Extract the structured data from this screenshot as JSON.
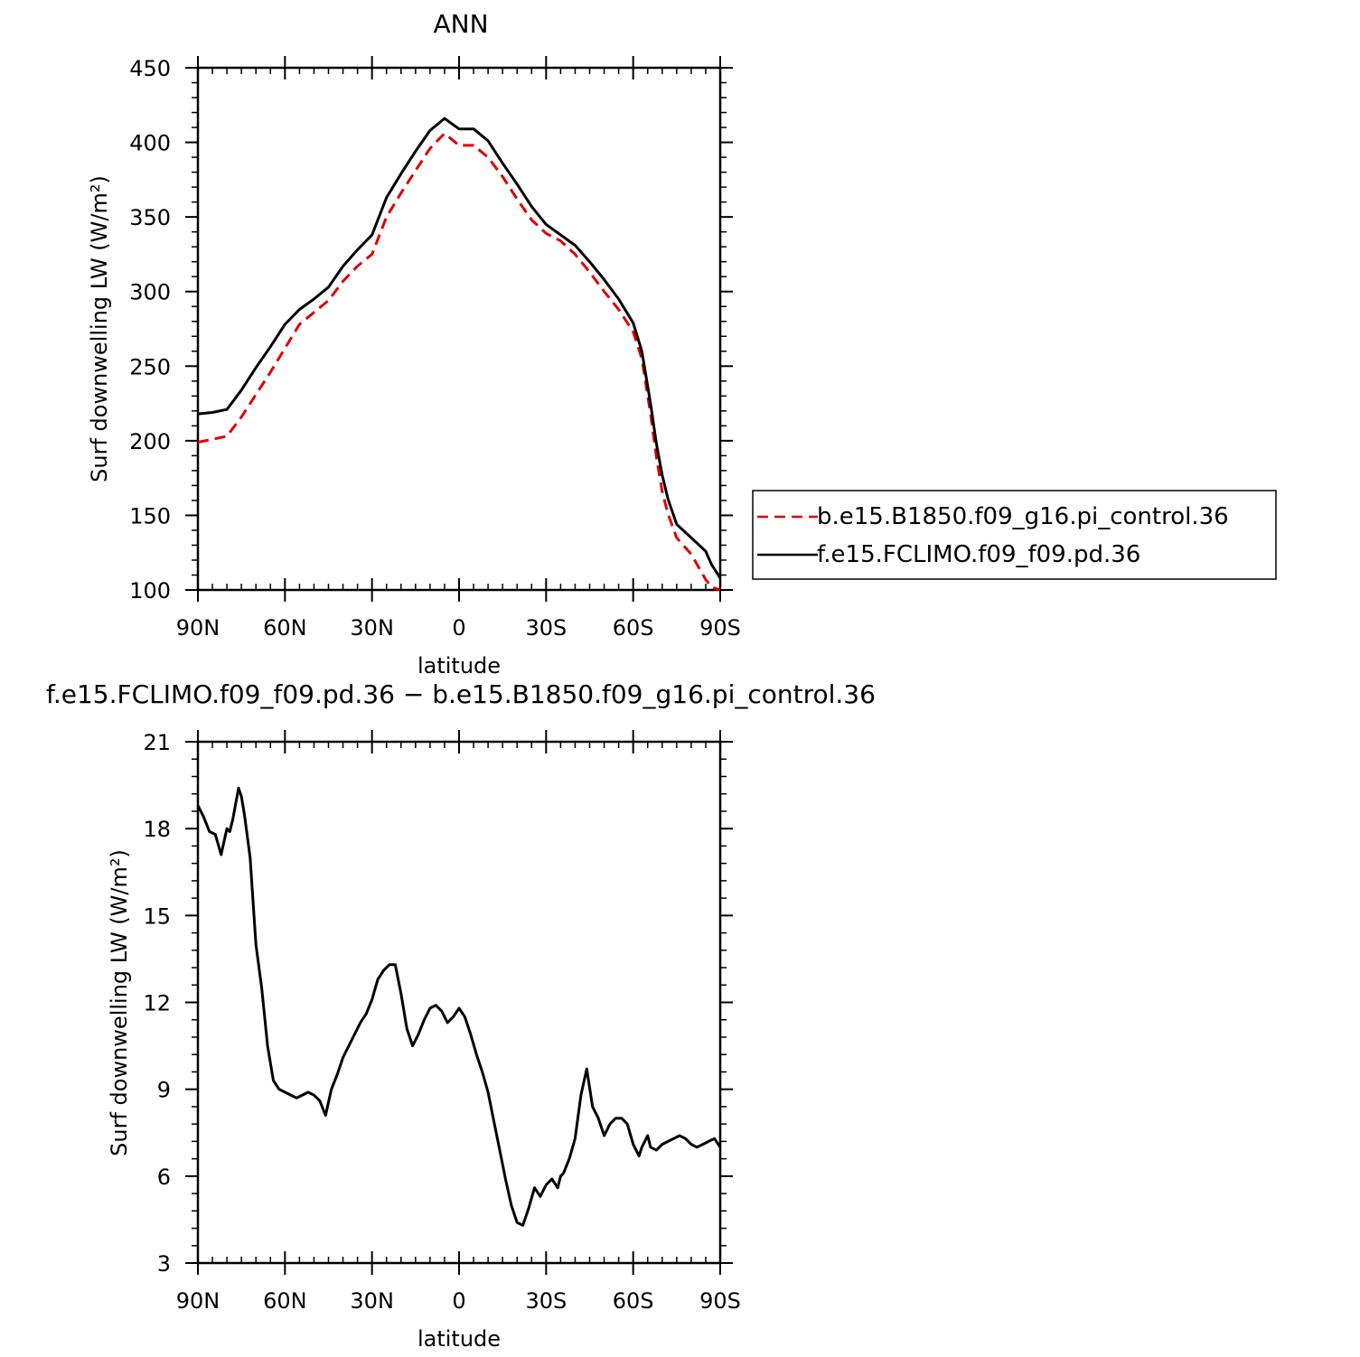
{
  "chart_data": [
    {
      "type": "line",
      "title": "ANN",
      "xlabel": "latitude",
      "ylabel": "Surf downwelling LW (W/m²)",
      "xlim": [
        90,
        -90
      ],
      "ylim": [
        100,
        450
      ],
      "x_ticks": [
        {
          "value": 90,
          "label": "90N"
        },
        {
          "value": 60,
          "label": "60N"
        },
        {
          "value": 30,
          "label": "30N"
        },
        {
          "value": 0,
          "label": "0"
        },
        {
          "value": -30,
          "label": "30S"
        },
        {
          "value": -60,
          "label": "60S"
        },
        {
          "value": -90,
          "label": "90S"
        }
      ],
      "y_ticks": [
        100,
        150,
        200,
        250,
        300,
        350,
        400,
        450
      ],
      "legend": "right",
      "series": [
        {
          "name": "b.e15.B1850.f09_g16.pi_control.36",
          "color": "#e00000",
          "dash": true,
          "x": [
            90,
            85,
            80,
            75,
            70,
            65,
            60,
            55,
            50,
            45,
            40,
            35,
            30,
            25,
            20,
            15,
            10,
            5,
            0,
            -5,
            -10,
            -15,
            -20,
            -25,
            -30,
            -35,
            -40,
            -45,
            -50,
            -55,
            -60,
            -63,
            -66,
            -68,
            -70,
            -72,
            -75,
            -80,
            -85,
            -87,
            -90
          ],
          "values": [
            199,
            201,
            203,
            216,
            231,
            246,
            262,
            278,
            286,
            294,
            307,
            317,
            325,
            350,
            366,
            381,
            396,
            406,
            398,
            398,
            390,
            377,
            362,
            348,
            339,
            334,
            325,
            313,
            300,
            288,
            273,
            255,
            218,
            189,
            166,
            151,
            135,
            124,
            107,
            102,
            100
          ]
        },
        {
          "name": "f.e15.FCLIMO.f09_f09.pd.36",
          "color": "#000000",
          "dash": false,
          "x": [
            90,
            85,
            80,
            75,
            70,
            65,
            60,
            55,
            50,
            45,
            40,
            35,
            30,
            25,
            20,
            15,
            10,
            5,
            0,
            -5,
            -10,
            -15,
            -20,
            -25,
            -30,
            -35,
            -40,
            -45,
            -50,
            -55,
            -60,
            -63,
            -66,
            -68,
            -70,
            -72,
            -75,
            -80,
            -85,
            -87,
            -90
          ],
          "values": [
            218,
            219,
            221,
            234,
            249,
            263,
            278,
            288,
            295,
            303,
            317,
            328,
            338,
            363,
            379,
            394,
            408,
            416,
            409,
            409,
            401,
            386,
            372,
            357,
            345,
            338,
            331,
            320,
            308,
            295,
            279,
            260,
            225,
            198,
            177,
            161,
            144,
            135,
            126,
            117,
            108
          ]
        }
      ]
    },
    {
      "type": "line",
      "title": "f.e15.FCLIMO.f09_f09.pd.36 − b.e15.B1850.f09_g16.pi_control.36",
      "xlabel": "latitude",
      "ylabel": "Surf downwelling LW (W/m²)",
      "xlim": [
        90,
        -90
      ],
      "ylim": [
        3,
        21
      ],
      "x_ticks": [
        {
          "value": 90,
          "label": "90N"
        },
        {
          "value": 60,
          "label": "60N"
        },
        {
          "value": 30,
          "label": "30N"
        },
        {
          "value": 0,
          "label": "0"
        },
        {
          "value": -30,
          "label": "30S"
        },
        {
          "value": -60,
          "label": "60S"
        },
        {
          "value": -90,
          "label": "90S"
        }
      ],
      "y_ticks": [
        3,
        6,
        9,
        12,
        15,
        18,
        21
      ],
      "series": [
        {
          "color": "#000000",
          "dash": false,
          "x": [
            90,
            88,
            86,
            84,
            82,
            80,
            79,
            78,
            76,
            75,
            74,
            72,
            70,
            68,
            66,
            64,
            62,
            60,
            58,
            56,
            54,
            52,
            50,
            48,
            46,
            44,
            42,
            40,
            38,
            36,
            34,
            32,
            30,
            28,
            26,
            24,
            22,
            20,
            18,
            16,
            14,
            12,
            10,
            8,
            6,
            4,
            2,
            0,
            -2,
            -4,
            -6,
            -8,
            -10,
            -12,
            -14,
            -16,
            -18,
            -20,
            -22,
            -24,
            -26,
            -28,
            -30,
            -32,
            -34,
            -35,
            -36,
            -38,
            -40,
            -42,
            -44,
            -46,
            -48,
            -50,
            -52,
            -54,
            -56,
            -58,
            -60,
            -62,
            -63,
            -64,
            -65,
            -66,
            -68,
            -70,
            -72,
            -74,
            -76,
            -78,
            -80,
            -82,
            -84,
            -86,
            -88,
            -90
          ],
          "values": [
            18.8,
            18.4,
            17.9,
            17.8,
            17.1,
            18.0,
            17.9,
            18.3,
            19.4,
            19.1,
            18.5,
            17.0,
            14.0,
            12.5,
            10.5,
            9.3,
            9.0,
            8.9,
            8.8,
            8.7,
            8.8,
            8.9,
            8.8,
            8.6,
            8.1,
            9.0,
            9.5,
            10.1,
            10.5,
            10.9,
            11.3,
            11.6,
            12.1,
            12.8,
            13.1,
            13.3,
            13.3,
            12.3,
            11.1,
            10.5,
            10.9,
            11.4,
            11.8,
            11.9,
            11.7,
            11.3,
            11.5,
            11.8,
            11.5,
            10.9,
            10.2,
            9.6,
            8.9,
            7.9,
            6.9,
            5.9,
            5.0,
            4.4,
            4.3,
            4.9,
            5.6,
            5.3,
            5.7,
            5.9,
            5.6,
            6.0,
            6.1,
            6.6,
            7.3,
            8.8,
            9.7,
            8.4,
            8.0,
            7.4,
            7.8,
            8.0,
            8.0,
            7.8,
            7.1,
            6.7,
            7.0,
            7.2,
            7.4,
            7.0,
            6.9,
            7.1,
            7.2,
            7.3,
            7.4,
            7.3,
            7.1,
            7.0,
            7.1,
            7.2,
            7.3,
            7.0
          ]
        }
      ]
    }
  ]
}
